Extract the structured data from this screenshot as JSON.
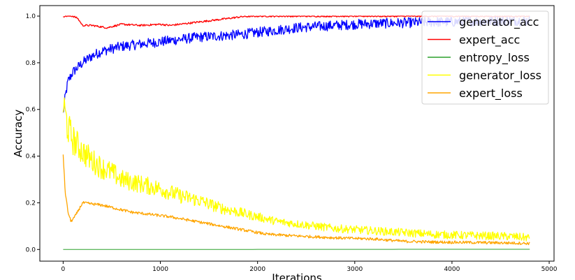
{
  "chart_data": {
    "type": "line",
    "title": "",
    "xlabel": "Iterations",
    "ylabel": "Accuracy",
    "xlim": [
      -240,
      5050
    ],
    "ylim": [
      -0.05,
      1.045
    ],
    "x_ticks": [
      0,
      1000,
      2000,
      3000,
      4000,
      5000
    ],
    "y_ticks": [
      0.0,
      0.2,
      0.4,
      0.6,
      0.8,
      1.0
    ],
    "x_tick_labels": [
      "0",
      "1000",
      "2000",
      "3000",
      "4000",
      "5000"
    ],
    "y_tick_labels": [
      "0.0",
      "0.2",
      "0.4",
      "0.6",
      "0.8",
      "1.0"
    ],
    "grid": false,
    "legend_position": "top-right",
    "series": [
      {
        "name": "generator_acc",
        "color": "#0000ff",
        "noise": 0.022,
        "x": [
          0,
          20,
          50,
          100,
          200,
          300,
          400,
          500,
          600,
          800,
          1000,
          1200,
          1400,
          1600,
          1800,
          2000,
          2200,
          2400,
          2600,
          2800,
          3000,
          3200,
          3400,
          3600,
          3800,
          4000,
          4200,
          4400,
          4600,
          4800
        ],
        "values": [
          0.58,
          0.65,
          0.72,
          0.76,
          0.8,
          0.83,
          0.85,
          0.86,
          0.87,
          0.88,
          0.89,
          0.9,
          0.91,
          0.915,
          0.92,
          0.93,
          0.94,
          0.95,
          0.955,
          0.96,
          0.965,
          0.968,
          0.97,
          0.972,
          0.975,
          0.975,
          0.977,
          0.978,
          0.98,
          0.98
        ]
      },
      {
        "name": "expert_acc",
        "color": "#ff0000",
        "noise": 0.004,
        "x": [
          0,
          100,
          150,
          200,
          300,
          450,
          600,
          800,
          1000,
          1100,
          1300,
          1500,
          1700,
          1850,
          2000,
          3000,
          4000,
          4800
        ],
        "values": [
          1.0,
          1.0,
          0.99,
          0.96,
          0.96,
          0.95,
          0.965,
          0.96,
          0.965,
          0.96,
          0.97,
          0.98,
          0.99,
          0.998,
          1.0,
          1.0,
          1.0,
          1.0
        ]
      },
      {
        "name": "entropy_loss",
        "color": "#2ca02c",
        "noise": 0,
        "x": [
          0,
          4800
        ],
        "values": [
          0.0,
          0.001
        ]
      },
      {
        "name": "generator_loss",
        "color": "#ffff00",
        "noise": 0.035,
        "x": [
          0,
          20,
          50,
          100,
          200,
          300,
          400,
          500,
          600,
          800,
          1000,
          1200,
          1400,
          1600,
          1800,
          2000,
          2200,
          2400,
          2600,
          2800,
          3000,
          3200,
          3400,
          3600,
          3800,
          4000,
          4200,
          4400,
          4600,
          4800
        ],
        "values": [
          0.62,
          0.58,
          0.52,
          0.47,
          0.42,
          0.38,
          0.35,
          0.33,
          0.3,
          0.28,
          0.26,
          0.23,
          0.21,
          0.18,
          0.16,
          0.14,
          0.12,
          0.11,
          0.1,
          0.09,
          0.085,
          0.08,
          0.075,
          0.07,
          0.065,
          0.062,
          0.06,
          0.058,
          0.056,
          0.05
        ]
      },
      {
        "name": "expert_loss",
        "color": "#ffa500",
        "noise": 0.006,
        "x": [
          0,
          20,
          50,
          80,
          120,
          200,
          300,
          400,
          500,
          700,
          900,
          1100,
          1300,
          1500,
          1700,
          1900,
          2100,
          2400,
          2800,
          3200,
          3500,
          3800,
          4200,
          4600,
          4800
        ],
        "values": [
          0.41,
          0.25,
          0.16,
          0.12,
          0.14,
          0.2,
          0.195,
          0.19,
          0.18,
          0.16,
          0.15,
          0.14,
          0.125,
          0.11,
          0.095,
          0.08,
          0.065,
          0.058,
          0.05,
          0.045,
          0.035,
          0.032,
          0.03,
          0.028,
          0.026
        ]
      }
    ]
  }
}
